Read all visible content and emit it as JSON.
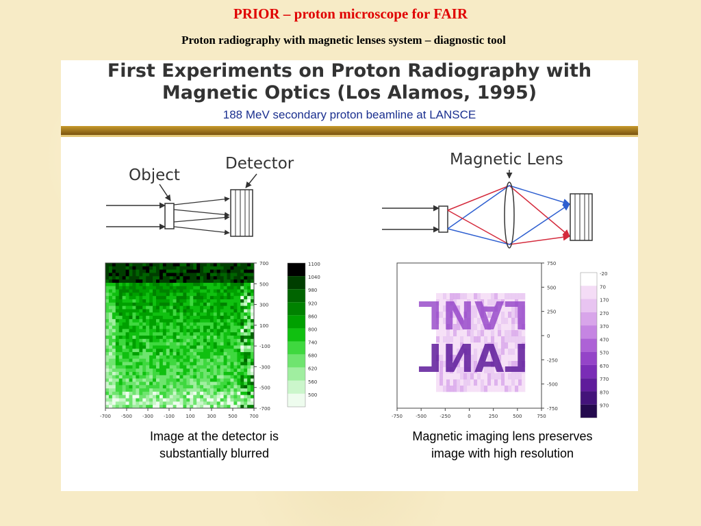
{
  "slide": {
    "title": "PRIOR – proton microscope for FAIR",
    "subtitle": "Proton radiography with magnetic lenses system – diagnostic tool"
  },
  "panel": {
    "title_line1": "First Experiments on Proton Radiography with",
    "title_line2": "Magnetic Optics (Los Alamos, 1995)",
    "subtitle": "188 MeV secondary proton beamline at LANSCE"
  },
  "left_diagram": {
    "object_label": "Object",
    "detector_label": "Detector"
  },
  "right_diagram": {
    "lens_label": "Magnetic Lens"
  },
  "colors": {
    "red_ray": "#d42a3c",
    "blue_ray": "#2e5fd0"
  },
  "chart_data": [
    {
      "type": "heatmap",
      "x_ticks": [
        "-700",
        "-500",
        "-300",
        "-100",
        "100",
        "300",
        "500",
        "700"
      ],
      "y_ticks": [
        "700",
        "500",
        "300",
        "100",
        "-100",
        "-300",
        "-500",
        "-700"
      ],
      "colorbar": {
        "labels": [
          "1100",
          "1040",
          "980",
          "920",
          "860",
          "800",
          "740",
          "680",
          "620",
          "560",
          "500"
        ],
        "colors": [
          "#000000",
          "#003e00",
          "#006400",
          "#008200",
          "#00a000",
          "#10c010",
          "#3fd83f",
          "#6fe46f",
          "#a0eea0",
          "#cbf6cb",
          "#eefcee"
        ]
      },
      "caption_line1": "Image at the detector is",
      "caption_line2": "substantially blurred"
    },
    {
      "type": "heatmap",
      "x_ticks": [
        "-750",
        "-500",
        "-250",
        "0",
        "250",
        "500",
        "750"
      ],
      "y_ticks": [
        "750",
        "500",
        "250",
        "0",
        "-250",
        "-500",
        "-750"
      ],
      "colorbar": {
        "labels": [
          "-20",
          "70",
          "170",
          "270",
          "370",
          "470",
          "570",
          "670",
          "770",
          "870",
          "970"
        ],
        "colors": [
          "#ffffff",
          "#f4dcf6",
          "#e8c4f1",
          "#d8a5ea",
          "#c585e2",
          "#ad62d6",
          "#9444c8",
          "#7a2db6",
          "#5f1c9b",
          "#43137a",
          "#240a4d"
        ]
      },
      "image_text": "LANL",
      "caption_line1": "Magnetic imaging lens preserves",
      "caption_line2": "image with high resolution"
    }
  ]
}
